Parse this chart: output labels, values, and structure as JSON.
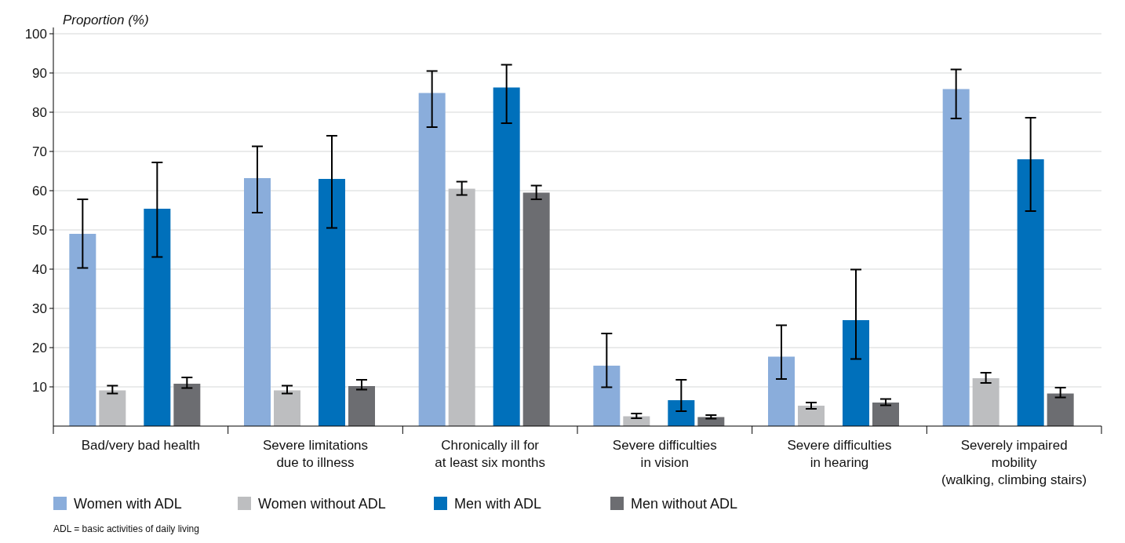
{
  "chart_data": {
    "type": "bar",
    "ylabel": "Proportion (%)",
    "categories": [
      "Bad/very bad health",
      "Severe limitations\ndue to illness",
      "Chronically ill for\nat least six months",
      "Severe difficulties\nin vision",
      "Severe difficulties\nin hearing",
      "Severely impaired\nmobility\n(walking, climbing stairs)"
    ],
    "series": [
      {
        "name": "Women with ADL",
        "color": "#8aaddb",
        "values": [
          49.0,
          63.2,
          84.9,
          15.4,
          17.7,
          85.9
        ],
        "errors": [
          [
            40.3,
            57.8
          ],
          [
            54.4,
            71.3
          ],
          [
            76.2,
            90.5
          ],
          [
            9.9,
            23.6
          ],
          [
            12.0,
            25.7
          ],
          [
            78.4,
            90.9
          ]
        ]
      },
      {
        "name": "Women without ADL",
        "color": "#bdbec0",
        "values": [
          9.1,
          9.1,
          60.5,
          2.5,
          5.2,
          12.2
        ],
        "errors": [
          [
            8.3,
            10.3
          ],
          [
            8.3,
            10.3
          ],
          [
            58.9,
            62.3
          ],
          [
            2.0,
            3.2
          ],
          [
            4.4,
            6.0
          ],
          [
            11.0,
            13.6
          ]
        ]
      },
      {
        "name": "Men with ADL",
        "color": "#0070bb",
        "values": [
          55.4,
          63.0,
          86.3,
          6.6,
          27.0,
          68.0
        ],
        "errors": [
          [
            43.1,
            67.2
          ],
          [
            50.5,
            74.0
          ],
          [
            77.2,
            92.1
          ],
          [
            3.8,
            11.8
          ],
          [
            17.1,
            39.9
          ],
          [
            54.8,
            78.6
          ]
        ]
      },
      {
        "name": "Men without ADL",
        "color": "#6c6d71",
        "values": [
          10.8,
          10.2,
          59.5,
          2.3,
          6.0,
          8.3
        ],
        "errors": [
          [
            9.7,
            12.4
          ],
          [
            9.3,
            11.8
          ],
          [
            57.8,
            61.3
          ],
          [
            1.9,
            2.8
          ],
          [
            5.3,
            6.9
          ],
          [
            7.3,
            9.8
          ]
        ]
      }
    ],
    "ylim": [
      0,
      100
    ],
    "yticks": [
      10,
      20,
      30,
      40,
      50,
      60,
      70,
      80,
      90,
      100
    ],
    "grid": "y",
    "legend": "bottom",
    "annotations": [
      "ADL = basic activities of daily living"
    ]
  }
}
